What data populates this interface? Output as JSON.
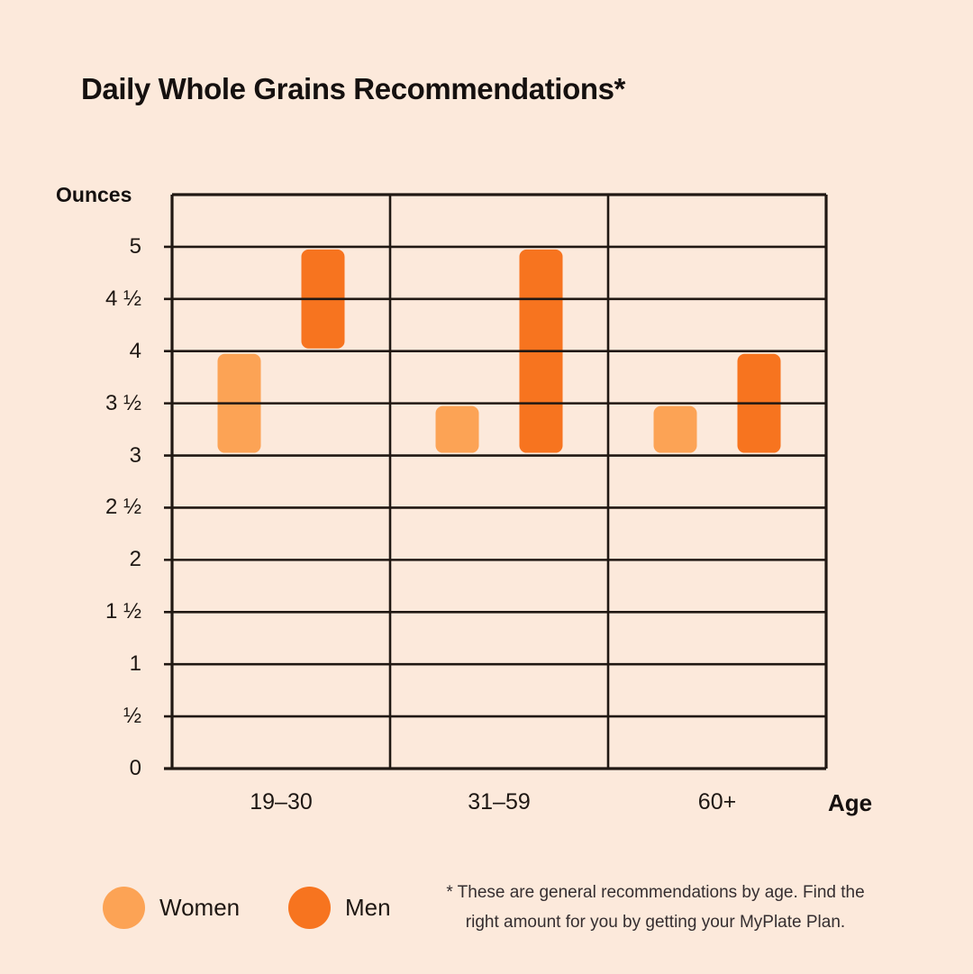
{
  "page": {
    "background": "#FCE9DB",
    "ink": "#201813"
  },
  "title": "Daily Whole Grains Recommendations*",
  "chart_data": {
    "type": "bar",
    "subtype": "floating-range-columns",
    "title": "Daily Whole Grains Recommendations*",
    "ylabel": "Ounces",
    "xlabel": "Age",
    "unit": "ounces per day",
    "categories": [
      "19–30",
      "31–59",
      "60+"
    ],
    "series": [
      {
        "name": "Women",
        "color": "#FCA355",
        "ranges": [
          [
            3,
            4
          ],
          [
            3,
            3.5
          ],
          [
            3,
            3.5
          ]
        ]
      },
      {
        "name": "Men",
        "color": "#F7741F",
        "ranges": [
          [
            4,
            5
          ],
          [
            3,
            5
          ],
          [
            3,
            4
          ]
        ]
      }
    ],
    "ylim": [
      0,
      5.5
    ],
    "ytick_step": 0.5,
    "ytick_labels_top_to_bottom": [
      "5",
      "4 ½",
      "4",
      "3 ½",
      "3",
      "2 ½",
      "2",
      "1 ½",
      "1",
      "½",
      "0"
    ],
    "grid": true,
    "gridline_color": "#201813",
    "legend_position": "bottom-left"
  },
  "legend": {
    "items": [
      {
        "label": "Women",
        "color": "#FCA355"
      },
      {
        "label": "Men",
        "color": "#F7741F"
      }
    ]
  },
  "footnote": {
    "lines": [
      "* These are general recommendations by age. Find the",
      "right amount for you by getting your MyPlate Plan."
    ]
  }
}
